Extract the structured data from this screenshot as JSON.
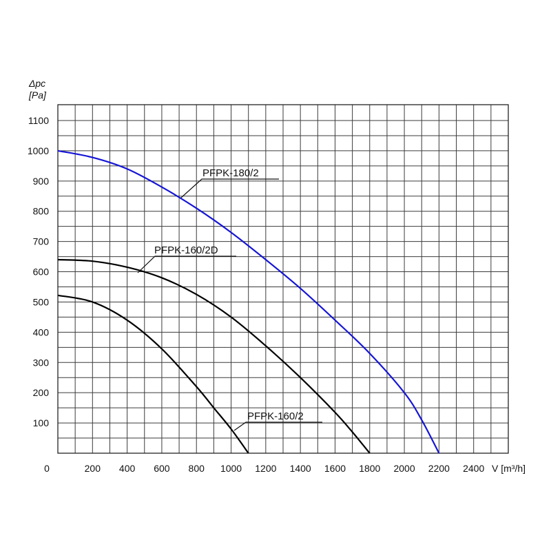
{
  "chart_data": {
    "type": "line",
    "ylabel_top": "Δpc",
    "ylabel_unit": "[Pa]",
    "xlabel": "V [m³/h]",
    "xlim": [
      0,
      2600
    ],
    "ylim": [
      0,
      1100
    ],
    "x_ticks": [
      "0",
      "200",
      "400",
      "600",
      "800",
      "1000",
      "1200",
      "1400",
      "1600",
      "1800",
      "2000",
      "2200",
      "2400"
    ],
    "y_ticks": [
      "100",
      "200",
      "300",
      "400",
      "500",
      "600",
      "700",
      "800",
      "900",
      "1000",
      "1100"
    ],
    "grid": true,
    "series": [
      {
        "name": "PFPK-180/2",
        "color": "#1515d6",
        "points": [
          [
            0,
            1000
          ],
          [
            200,
            978
          ],
          [
            400,
            940
          ],
          [
            600,
            880
          ],
          [
            800,
            810
          ],
          [
            1000,
            730
          ],
          [
            1200,
            640
          ],
          [
            1400,
            545
          ],
          [
            1600,
            440
          ],
          [
            1800,
            330
          ],
          [
            2000,
            200
          ],
          [
            2100,
            110
          ],
          [
            2200,
            0
          ]
        ]
      },
      {
        "name": "PFPK-160/2D",
        "color": "#000000",
        "points": [
          [
            0,
            640
          ],
          [
            200,
            635
          ],
          [
            400,
            615
          ],
          [
            600,
            580
          ],
          [
            800,
            525
          ],
          [
            1000,
            450
          ],
          [
            1200,
            355
          ],
          [
            1400,
            250
          ],
          [
            1600,
            135
          ],
          [
            1700,
            70
          ],
          [
            1800,
            0
          ]
        ]
      },
      {
        "name": "PFPK-160/2",
        "color": "#000000",
        "points": [
          [
            0,
            522
          ],
          [
            200,
            500
          ],
          [
            400,
            440
          ],
          [
            600,
            345
          ],
          [
            800,
            220
          ],
          [
            900,
            150
          ],
          [
            1000,
            80
          ],
          [
            1100,
            0
          ]
        ]
      }
    ]
  }
}
